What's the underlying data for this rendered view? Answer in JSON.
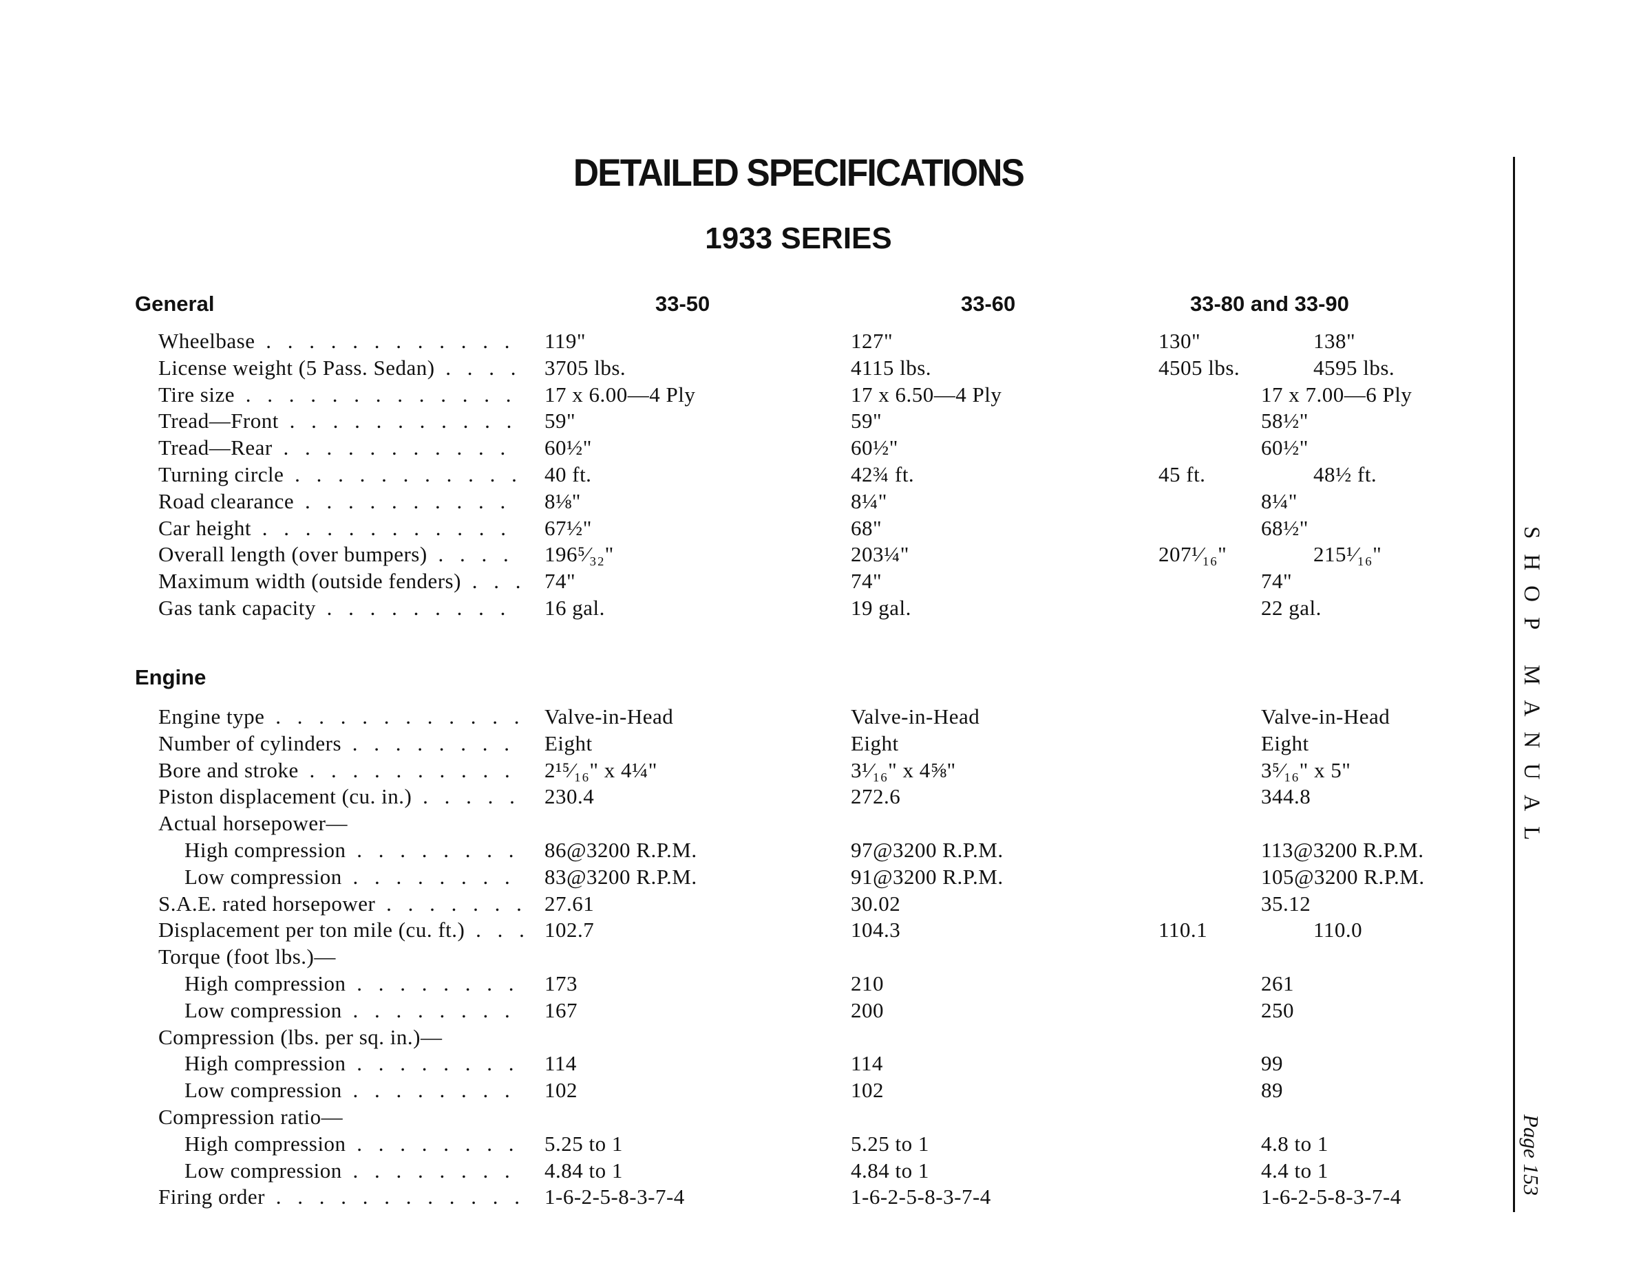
{
  "title": "DETAILED SPECIFICATIONS",
  "subtitle": "1933 SERIES",
  "columns": {
    "c1": "33-50",
    "c2": "33-60",
    "c3": "33-80 and 33-90"
  },
  "general": {
    "heading": "General",
    "rows": [
      {
        "label": "Wheelbase",
        "c1": "119\"",
        "c2": "127\"",
        "c3a": "130\"",
        "c3b": "138\""
      },
      {
        "label": "License weight (5 Pass. Sedan)",
        "c1": "3705 lbs.",
        "c2": "4115 lbs.",
        "c3a": "4505 lbs.",
        "c3b": "4595 lbs."
      },
      {
        "label": "Tire size",
        "c1": "17 x 6.00—4 Ply",
        "c2": "17 x 6.50—4 Ply",
        "c3": "17 x 7.00—6 Ply"
      },
      {
        "label": "Tread—Front",
        "c1": "59\"",
        "c2": "59\"",
        "c3": "58½\""
      },
      {
        "label": "Tread—Rear",
        "c1": "60½\"",
        "c2": "60½\"",
        "c3": "60½\""
      },
      {
        "label": "Turning circle",
        "c1": "40 ft.",
        "c2": "42¾ ft.",
        "c3a": "45 ft.",
        "c3b": "48½ ft."
      },
      {
        "label": "Road clearance",
        "c1": "8⅛\"",
        "c2": "8¼\"",
        "c3": "8¼\""
      },
      {
        "label": "Car height",
        "c1": "67½\"",
        "c2": "68\"",
        "c3": "68½\""
      },
      {
        "label": "Overall length (over bumpers)",
        "c1": "196⁵⁄₃₂\"",
        "c2": "203¼\"",
        "c3a": "207¹⁄₁₆\"",
        "c3b": "215¹⁄₁₆\""
      },
      {
        "label": "Maximum width (outside fenders)",
        "c1": "74\"",
        "c2": "74\"",
        "c3": "74\""
      },
      {
        "label": "Gas tank capacity",
        "c1": "16 gal.",
        "c2": "19 gal.",
        "c3": "22 gal."
      }
    ]
  },
  "engine": {
    "heading": "Engine",
    "rows": [
      {
        "label": "Engine type",
        "c1": "Valve-in-Head",
        "c2": "Valve-in-Head",
        "c3": "Valve-in-Head"
      },
      {
        "label": "Number of cylinders",
        "c1": "Eight",
        "c2": "Eight",
        "c3": "Eight"
      },
      {
        "label": "Bore and stroke",
        "c1": "2¹⁵⁄₁₆\" x 4¼\"",
        "c2": "3¹⁄₁₆\" x 4⅝\"",
        "c3": "3⁵⁄₁₆\" x 5\""
      },
      {
        "label": "Piston displacement (cu. in.)",
        "c1": "230.4",
        "c2": "272.6",
        "c3": "344.8"
      },
      {
        "label": "Actual horsepower—",
        "nolead": true
      },
      {
        "label": "High compression",
        "sub": true,
        "c1": "86@3200 R.P.M.",
        "c2": "97@3200 R.P.M.",
        "c3": "113@3200 R.P.M."
      },
      {
        "label": "Low compression",
        "sub": true,
        "c1": "83@3200 R.P.M.",
        "c2": "91@3200 R.P.M.",
        "c3": "105@3200 R.P.M."
      },
      {
        "label": "S.A.E. rated horsepower",
        "c1": "27.61",
        "c2": "30.02",
        "c3": "35.12"
      },
      {
        "label": "Displacement per ton mile (cu. ft.)",
        "c1": "102.7",
        "c2": "104.3",
        "c3a": "110.1",
        "c3b": "110.0"
      },
      {
        "label": "Torque (foot lbs.)—",
        "nolead": true
      },
      {
        "label": "High compression",
        "sub": true,
        "c1": "173",
        "c2": "210",
        "c3": "261"
      },
      {
        "label": "Low compression",
        "sub": true,
        "c1": "167",
        "c2": "200",
        "c3": "250"
      },
      {
        "label": "Compression (lbs. per sq. in.)—",
        "nolead": true
      },
      {
        "label": "High compression",
        "sub": true,
        "c1": "114",
        "c2": "114",
        "c3": "99"
      },
      {
        "label": "Low compression",
        "sub": true,
        "c1": "102",
        "c2": "102",
        "c3": "89"
      },
      {
        "label": "Compression ratio—",
        "nolead": true
      },
      {
        "label": "High compression",
        "sub": true,
        "c1": "5.25 to 1",
        "c2": "5.25 to 1",
        "c3": "4.8 to 1"
      },
      {
        "label": "Low compression",
        "sub": true,
        "c1": "4.84 to 1",
        "c2": "4.84 to 1",
        "c3": "4.4 to 1"
      },
      {
        "label": "Firing order",
        "c1": "1-6-2-5-8-3-7-4",
        "c2": "1-6-2-5-8-3-7-4",
        "c3": "1-6-2-5-8-3-7-4"
      }
    ]
  },
  "sidebar": {
    "text": "SHOP MANUAL",
    "page": "Page 153"
  }
}
